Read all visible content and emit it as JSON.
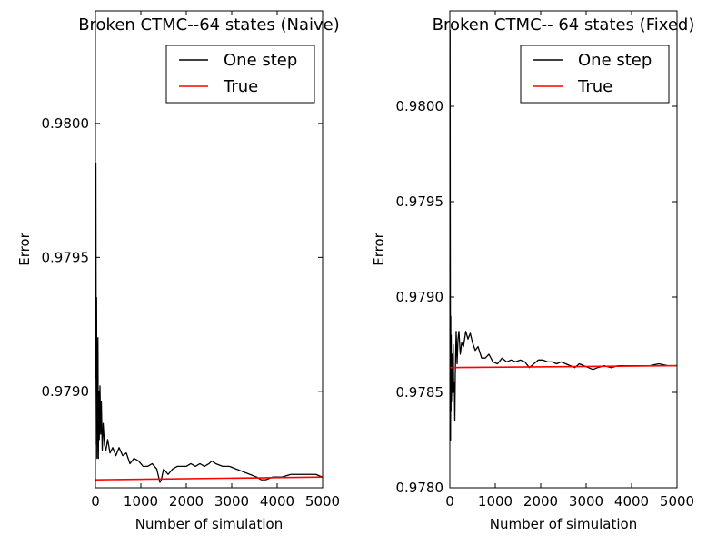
{
  "chart_data": [
    {
      "type": "line",
      "title": "Broken CTMC--64 states (Naive)",
      "xlabel": "Number of simulation",
      "ylabel": "Error",
      "xlim": [
        0,
        5000
      ],
      "ylim": [
        0.97864,
        0.98042
      ],
      "xticks": [
        0,
        1000,
        2000,
        3000,
        4000,
        5000
      ],
      "xtick_labels": [
        "0",
        "1000",
        "2000",
        "3000",
        "4000",
        "5000"
      ],
      "yticks": [
        0.979,
        0.9795,
        0.98
      ],
      "ytick_labels": [
        "0.9790",
        "0.9795",
        "0.9800"
      ],
      "grid": false,
      "legend": {
        "placement": "top-right",
        "entries": [
          "One step",
          "True"
        ]
      },
      "series": [
        {
          "name": "One step",
          "color": "#000000",
          "x": [
            0,
            10,
            18,
            25,
            35,
            45,
            55,
            65,
            75,
            85,
            100,
            115,
            130,
            150,
            170,
            200,
            230,
            270,
            320,
            380,
            450,
            520,
            600,
            680,
            760,
            850,
            950,
            1050,
            1150,
            1250,
            1350,
            1420,
            1450,
            1500,
            1600,
            1700,
            1800,
            1900,
            2000,
            2100,
            2200,
            2300,
            2400,
            2500,
            2560,
            2650,
            2800,
            2950,
            3100,
            3250,
            3400,
            3550,
            3650,
            3750,
            3900,
            4100,
            4300,
            4500,
            4700,
            4850,
            5000
          ],
          "y": [
            0.9788,
            0.97985,
            0.97905,
            0.97935,
            0.97875,
            0.97898,
            0.9792,
            0.97875,
            0.979,
            0.97882,
            0.97902,
            0.97884,
            0.97896,
            0.97878,
            0.97888,
            0.9788,
            0.97878,
            0.97882,
            0.97877,
            0.97879,
            0.97876,
            0.97879,
            0.97876,
            0.97877,
            0.97873,
            0.97875,
            0.97874,
            0.97872,
            0.97872,
            0.97873,
            0.97871,
            0.97866,
            0.97867,
            0.97871,
            0.97869,
            0.97871,
            0.97872,
            0.97872,
            0.97872,
            0.97873,
            0.97872,
            0.97873,
            0.97872,
            0.97873,
            0.97874,
            0.97873,
            0.97872,
            0.97872,
            0.97871,
            0.9787,
            0.97869,
            0.97868,
            0.97867,
            0.97867,
            0.97868,
            0.97868,
            0.97869,
            0.97869,
            0.97869,
            0.97869,
            0.97868
          ]
        },
        {
          "name": "True",
          "color": "#ff0000",
          "x": [
            0,
            5000
          ],
          "y": [
            0.97867,
            0.97868
          ]
        }
      ]
    },
    {
      "type": "line",
      "title": "Broken CTMC-- 64 states (Fixed)",
      "xlabel": "Number of simulation",
      "ylabel": "Error",
      "xlim": [
        0,
        5000
      ],
      "ylim": [
        0.978,
        0.9805
      ],
      "xticks": [
        0,
        1000,
        2000,
        3000,
        4000,
        5000
      ],
      "xtick_labels": [
        "0",
        "1000",
        "2000",
        "3000",
        "4000",
        "5000"
      ],
      "yticks": [
        0.978,
        0.9785,
        0.979,
        0.9795,
        0.98
      ],
      "ytick_labels": [
        "0.9780",
        "0.9785",
        "0.9790",
        "0.9795",
        "0.9800"
      ],
      "grid": false,
      "legend": {
        "placement": "top-right",
        "entries": [
          "One step",
          "True"
        ]
      },
      "series": [
        {
          "name": "One step",
          "color": "#000000",
          "x": [
            0,
            5,
            10,
            15,
            20,
            25,
            30,
            35,
            45,
            55,
            65,
            75,
            85,
            100,
            110,
            120,
            140,
            160,
            180,
            200,
            230,
            260,
            300,
            350,
            400,
            450,
            500,
            560,
            620,
            700,
            780,
            860,
            950,
            1050,
            1150,
            1250,
            1350,
            1450,
            1550,
            1650,
            1750,
            1850,
            1950,
            2050,
            2150,
            2250,
            2350,
            2450,
            2550,
            2650,
            2750,
            2850,
            2950,
            3050,
            3150,
            3250,
            3400,
            3550,
            3700,
            3850,
            4000,
            4200,
            4400,
            4600,
            4800,
            5000
          ],
          "y": [
            0.97865,
            0.9804,
            0.9793,
            0.97825,
            0.9789,
            0.9784,
            0.9788,
            0.97845,
            0.97855,
            0.9787,
            0.9785,
            0.97875,
            0.9785,
            0.97855,
            0.97835,
            0.9786,
            0.97882,
            0.97865,
            0.97878,
            0.97882,
            0.9787,
            0.97876,
            0.97874,
            0.97882,
            0.97878,
            0.97881,
            0.97876,
            0.97872,
            0.97874,
            0.97868,
            0.97868,
            0.9787,
            0.97866,
            0.97865,
            0.97868,
            0.97866,
            0.97867,
            0.97866,
            0.97867,
            0.97866,
            0.97863,
            0.97865,
            0.97867,
            0.97867,
            0.97866,
            0.97866,
            0.97865,
            0.97866,
            0.97865,
            0.97864,
            0.97863,
            0.97865,
            0.97864,
            0.97863,
            0.97862,
            0.97863,
            0.97864,
            0.97863,
            0.97864,
            0.97864,
            0.97864,
            0.97864,
            0.97864,
            0.97865,
            0.97864,
            0.97864
          ]
        },
        {
          "name": "True",
          "color": "#ff0000",
          "x": [
            0,
            5000
          ],
          "y": [
            0.97863,
            0.97864
          ]
        }
      ]
    }
  ]
}
